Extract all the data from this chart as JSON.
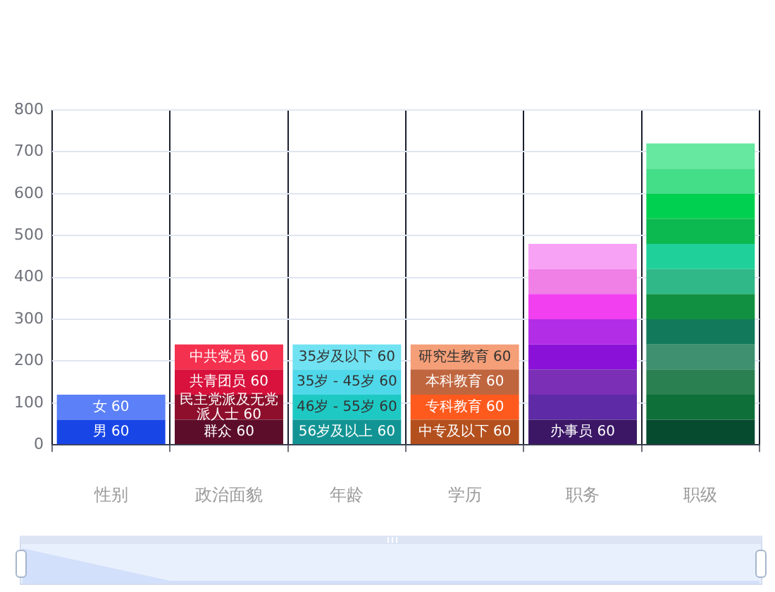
{
  "chart_data": {
    "type": "bar",
    "stacked": true,
    "grid": true,
    "categories": [
      "性别",
      "政治面貌",
      "年龄",
      "学历",
      "职务",
      "职级"
    ],
    "ylim": [
      0,
      800
    ],
    "yticks": [
      0,
      100,
      200,
      300,
      400,
      500,
      600,
      700,
      800
    ],
    "series": [
      {
        "values": [
          60,
          60,
          60,
          60,
          60,
          60
        ],
        "colors": [
          "#1846e6",
          "#5c0d2a",
          "#139494",
          "#b4501e",
          "#3b1766",
          "#064a30"
        ],
        "value_labels": [
          "男 60",
          "群众 60",
          "56岁及以上 60",
          "中专及以下 60",
          "办事员 60",
          null
        ]
      },
      {
        "values": [
          60,
          60,
          60,
          60,
          60,
          60
        ],
        "colors": [
          "#5b80f7",
          "#8e0f2c",
          "#1ec9c4",
          "#ff5a1e",
          "#5e2aa6",
          "#0e7038"
        ],
        "value_labels": [
          "女 60",
          "民主党派及无党派人士 60",
          "46岁 - 55岁 60",
          "专科教育 60",
          null,
          null
        ]
      },
      {
        "values": [
          null,
          60,
          60,
          60,
          60,
          60
        ],
        "colors": [
          null,
          "#d8123c",
          "#4fd8ea",
          "#c0663f",
          "#7a2fb6",
          "#2a8050"
        ],
        "value_labels": [
          null,
          "共青团员 60",
          "35岁 - 45岁 60",
          "本科教育 60",
          null,
          null
        ]
      },
      {
        "values": [
          null,
          60,
          60,
          60,
          60,
          60
        ],
        "colors": [
          null,
          "#f4324f",
          "#70e2f2",
          "#f59f78",
          "#8a12d8",
          "#3e9070"
        ],
        "value_labels": [
          null,
          "中共党员 60",
          "35岁及以下 60",
          "研究生教育 60",
          null,
          null
        ]
      },
      {
        "values": [
          null,
          null,
          null,
          null,
          60,
          60
        ],
        "colors": [
          null,
          null,
          null,
          null,
          "#b12de6",
          "#127a5a"
        ]
      },
      {
        "values": [
          null,
          null,
          null,
          null,
          60,
          60
        ],
        "colors": [
          null,
          null,
          null,
          null,
          "#f23ff0",
          "#109040"
        ]
      },
      {
        "values": [
          null,
          null,
          null,
          null,
          60,
          60
        ],
        "colors": [
          null,
          null,
          null,
          null,
          "#f07fe6",
          "#30b888"
        ]
      },
      {
        "values": [
          null,
          null,
          null,
          null,
          60,
          60
        ],
        "colors": [
          null,
          null,
          null,
          null,
          "#f8a2f6",
          "#20d09a"
        ]
      },
      {
        "values": [
          null,
          null,
          null,
          null,
          null,
          60
        ],
        "colors": [
          null,
          null,
          null,
          null,
          null,
          "#0cb850"
        ]
      },
      {
        "values": [
          null,
          null,
          null,
          null,
          null,
          60
        ],
        "colors": [
          null,
          null,
          null,
          null,
          null,
          "#00d050"
        ]
      },
      {
        "values": [
          null,
          null,
          null,
          null,
          null,
          60
        ],
        "colors": [
          null,
          null,
          null,
          null,
          null,
          "#44dd88"
        ]
      },
      {
        "values": [
          null,
          null,
          null,
          null,
          null,
          60
        ],
        "colors": [
          null,
          null,
          null,
          null,
          null,
          "#66e8a0"
        ]
      }
    ]
  }
}
